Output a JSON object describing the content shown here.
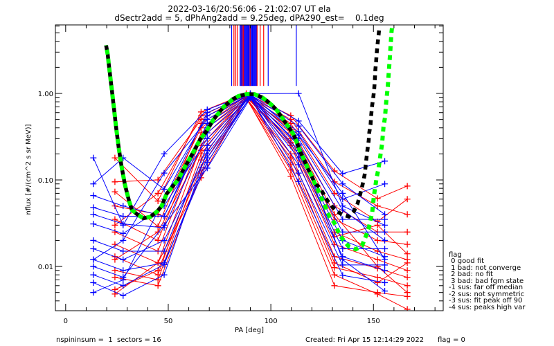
{
  "chart_data": {
    "type": "line",
    "title": "2022-03-16/20:56:06 - 21:02:07 UT ela",
    "subtitle": "dSectr2add = 5, dPhAng2add = 9.25deg, dPA290_est=    0.1deg",
    "xlabel": "PA [deg]",
    "ylabel": "nflux [#/(cm^2 s sr MeV)]",
    "xlim": [
      -5,
      184
    ],
    "ylim": [
      0.00308,
      6.19
    ],
    "yscale": "log",
    "grid": false,
    "legend_placement": "outside-bottom-right",
    "xticks": [
      0,
      50,
      100,
      150
    ],
    "xtick_labels": [
      "0",
      "50",
      "100",
      "150"
    ],
    "x_minor_step": 10,
    "yticks": [
      0.01,
      0.1,
      1.0
    ],
    "ytick_labels": [
      "0.01",
      "0.10",
      "1.00"
    ],
    "series": [
      {
        "name": "red sectors",
        "color": "#ff0000",
        "marker": "+",
        "x": [
          24,
          45,
          66,
          88,
          109.7,
          131,
          152,
          166.5
        ],
        "traces": [
          [
            0.18,
            0.057,
            0.61,
            1.0,
            0.555,
            0.127,
            0.061,
            0.085
          ],
          [
            0.095,
            0.1,
            0.5,
            0.97,
            0.5,
            0.095,
            0.05,
            0.04
          ],
          [
            0.073,
            0.029,
            0.45,
            0.95,
            0.45,
            0.07,
            0.033,
            0.06
          ],
          [
            0.05,
            0.04,
            0.4,
            0.93,
            0.4,
            0.05,
            0.025,
            0.025
          ],
          [
            0.035,
            0.02,
            0.35,
            0.91,
            0.35,
            0.035,
            0.02,
            0.018
          ],
          [
            0.025,
            0.015,
            0.3,
            0.9,
            0.3,
            0.025,
            0.015,
            0.012
          ],
          [
            0.018,
            0.011,
            0.25,
            0.92,
            0.25,
            0.018,
            0.012,
            0.009
          ],
          [
            0.013,
            0.008,
            0.2,
            0.88,
            0.2,
            0.013,
            0.0095,
            0.0075
          ],
          [
            0.009,
            0.007,
            0.17,
            0.9,
            0.15,
            0.0097,
            0.0075,
            0.006
          ],
          [
            0.0054,
            0.009,
            0.14,
            0.89,
            0.11,
            0.006,
            0.005,
            0.0045
          ],
          [
            0.0048,
            0.011,
            0.106,
            0.87,
            0.13,
            0.008,
            0.0048,
            0.0032
          ],
          [
            0.0075,
            0.006,
            0.12,
            0.86,
            0.18,
            0.011,
            0.0065,
            0.011
          ],
          [
            0.03,
            0.07,
            0.55,
            0.96,
            0.38,
            0.04,
            0.01,
            0.005
          ],
          [
            0.012,
            0.025,
            0.22,
            0.94,
            0.27,
            0.022,
            0.03,
            0.014
          ]
        ]
      },
      {
        "name": "blue sectors",
        "color": "#0000ff",
        "marker": "+",
        "x": [
          13.5,
          28,
          48,
          69,
          90,
          113.5,
          135,
          155.5
        ],
        "traces": [
          [
            0.18,
            0.03,
            0.2,
            0.65,
            1.0,
            0.48,
            0.118,
            0.165
          ],
          [
            0.09,
            0.18,
            0.078,
            0.55,
            0.97,
            0.42,
            0.09,
            0.04
          ],
          [
            0.066,
            0.05,
            0.038,
            0.45,
            0.95,
            0.36,
            0.06,
            0.09
          ],
          [
            0.048,
            0.038,
            0.038,
            0.4,
            0.93,
            0.3,
            0.045,
            0.02
          ],
          [
            0.04,
            0.031,
            0.028,
            0.35,
            0.92,
            0.26,
            0.035,
            0.035
          ],
          [
            0.031,
            0.024,
            0.05,
            0.3,
            0.9,
            0.22,
            0.025,
            0.025
          ],
          [
            0.02,
            0.015,
            0.015,
            0.25,
            0.96,
            0.2,
            0.02,
            0.013
          ],
          [
            0.016,
            0.012,
            0.02,
            0.2,
            0.89,
            0.18,
            0.016,
            0.016
          ],
          [
            0.012,
            0.009,
            0.011,
            0.16,
            0.91,
            0.15,
            0.013,
            0.009
          ],
          [
            0.01,
            0.0075,
            0.03,
            0.137,
            0.88,
            0.12,
            0.0104,
            0.0104
          ],
          [
            0.008,
            0.006,
            0.0105,
            0.18,
            0.9,
            0.096,
            0.0079,
            0.0065
          ],
          [
            0.0065,
            0.0046,
            0.008,
            0.22,
            0.94,
            0.25,
            0.012,
            0.0052
          ],
          [
            0.005,
            0.007,
            0.06,
            0.6,
            0.99,
            1.0,
            0.05,
            0.03
          ],
          [
            0.012,
            0.02,
            0.12,
            0.5,
            0.98,
            0.33,
            0.07,
            0.012
          ]
        ]
      }
    ],
    "peak_markers": {
      "from_flux": 1.22,
      "blue": [
        80.9,
        85.0,
        85.4,
        85.8,
        86.2,
        86.6,
        87.0,
        87.4,
        87.8,
        88.2,
        88.6,
        89.0,
        89.4,
        89.8,
        90.2,
        90.6,
        91.0,
        91.4,
        91.8,
        92.2,
        92.6,
        93.0,
        98.7,
        112.4
      ],
      "red": [
        82.0,
        82.8,
        83.6,
        86.0,
        86.7,
        89.9,
        93.3,
        94.8,
        96.5
      ]
    },
    "fits": [
      {
        "name": "fit (black, dashed)",
        "color": "#000000",
        "style": "dashed",
        "points": [
          [
            19.7,
            3.6
          ],
          [
            20.5,
            2.8
          ],
          [
            21,
            2.2
          ],
          [
            21.5,
            1.75
          ],
          [
            22,
            1.38
          ],
          [
            22.5,
            1.1
          ],
          [
            23,
            0.86
          ],
          [
            23.5,
            0.69
          ],
          [
            24,
            0.54
          ],
          [
            24.5,
            0.42
          ],
          [
            25.8,
            0.24
          ],
          [
            27.2,
            0.145
          ],
          [
            28.9,
            0.088
          ],
          [
            30.9,
            0.057
          ],
          [
            32.3,
            0.045
          ],
          [
            34.9,
            0.04
          ],
          [
            37.9,
            0.036
          ],
          [
            41.3,
            0.0375
          ],
          [
            44.7,
            0.0435
          ],
          [
            46.8,
            0.05
          ],
          [
            49.2,
            0.069
          ],
          [
            51.9,
            0.083
          ],
          [
            54.8,
            0.1
          ],
          [
            57,
            0.127
          ],
          [
            59.3,
            0.158
          ],
          [
            62.7,
            0.22
          ],
          [
            65.4,
            0.29
          ],
          [
            68.4,
            0.36
          ],
          [
            72.1,
            0.5
          ],
          [
            76.8,
            0.69
          ],
          [
            81.5,
            0.86
          ],
          [
            84.2,
            0.93
          ],
          [
            88,
            0.98
          ],
          [
            92,
            0.98
          ],
          [
            95.7,
            0.9
          ],
          [
            98.1,
            0.82
          ],
          [
            100.8,
            0.72
          ],
          [
            103.1,
            0.63
          ],
          [
            105.1,
            0.54
          ],
          [
            107.1,
            0.46
          ],
          [
            108.9,
            0.4
          ],
          [
            110.9,
            0.34
          ],
          [
            112.3,
            0.285
          ],
          [
            114,
            0.22
          ],
          [
            115.4,
            0.187
          ],
          [
            117,
            0.155
          ],
          [
            118.4,
            0.13
          ],
          [
            120,
            0.11
          ],
          [
            121.4,
            0.091
          ],
          [
            123.8,
            0.082
          ],
          [
            127.5,
            0.058
          ],
          [
            129.6,
            0.05
          ],
          [
            131.9,
            0.044
          ],
          [
            134.6,
            0.04
          ],
          [
            138,
            0.0377
          ],
          [
            140.4,
            0.043
          ],
          [
            142.1,
            0.052
          ],
          [
            143.1,
            0.062
          ],
          [
            144.1,
            0.077
          ],
          [
            145.1,
            0.096
          ],
          [
            145.8,
            0.118
          ],
          [
            146.6,
            0.179
          ],
          [
            147.1,
            0.225
          ],
          [
            147.7,
            0.284
          ],
          [
            148,
            0.356
          ],
          [
            148.6,
            0.436
          ],
          [
            148.9,
            0.557
          ],
          [
            149.3,
            0.705
          ],
          [
            149.9,
            0.895
          ],
          [
            150.4,
            1.13
          ],
          [
            150.7,
            1.44
          ],
          [
            150.9,
            1.83
          ],
          [
            151.3,
            2.32
          ],
          [
            151.6,
            2.93
          ],
          [
            152,
            3.7
          ],
          [
            152.5,
            4.72
          ],
          [
            152.9,
            5.94
          ]
        ]
      },
      {
        "name": "fit (green, dotted)",
        "color": "#00ff00",
        "style": "dotted",
        "points": [
          [
            19.7,
            3.6
          ],
          [
            20.5,
            2.8
          ],
          [
            21,
            2.2
          ],
          [
            21.5,
            1.75
          ],
          [
            22,
            1.38
          ],
          [
            22.5,
            1.1
          ],
          [
            23,
            0.86
          ],
          [
            23.5,
            0.69
          ],
          [
            24,
            0.54
          ],
          [
            24.5,
            0.42
          ],
          [
            25.8,
            0.24
          ],
          [
            27.2,
            0.145
          ],
          [
            28.9,
            0.088
          ],
          [
            30.9,
            0.057
          ],
          [
            32.3,
            0.045
          ],
          [
            34.9,
            0.04
          ],
          [
            37.9,
            0.036
          ],
          [
            41.3,
            0.0375
          ],
          [
            44.7,
            0.0435
          ],
          [
            46.8,
            0.05
          ],
          [
            49.2,
            0.069
          ],
          [
            51.9,
            0.083
          ],
          [
            54.8,
            0.1
          ],
          [
            57,
            0.127
          ],
          [
            59.3,
            0.158
          ],
          [
            62.7,
            0.22
          ],
          [
            65.4,
            0.29
          ],
          [
            68.4,
            0.36
          ],
          [
            72.1,
            0.5
          ],
          [
            76.8,
            0.69
          ],
          [
            81.5,
            0.86
          ],
          [
            84.2,
            0.93
          ],
          [
            88,
            0.98
          ],
          [
            92,
            0.98
          ],
          [
            95.7,
            0.9
          ],
          [
            98.1,
            0.82
          ],
          [
            100.8,
            0.72
          ],
          [
            103.1,
            0.63
          ],
          [
            105.1,
            0.54
          ],
          [
            107.1,
            0.46
          ],
          [
            108.9,
            0.4
          ],
          [
            110.9,
            0.34
          ],
          [
            112.3,
            0.285
          ],
          [
            114,
            0.22
          ],
          [
            115.4,
            0.187
          ],
          [
            117,
            0.155
          ],
          [
            118.4,
            0.13
          ],
          [
            120,
            0.11
          ],
          [
            121.4,
            0.091
          ],
          [
            122.8,
            0.078
          ],
          [
            125.8,
            0.054
          ],
          [
            128.6,
            0.0375
          ],
          [
            130.9,
            0.032
          ],
          [
            133.6,
            0.023
          ],
          [
            135.6,
            0.0198
          ],
          [
            137.9,
            0.0171
          ],
          [
            141.4,
            0.0158
          ],
          [
            144.4,
            0.0173
          ],
          [
            146.5,
            0.023
          ],
          [
            147.7,
            0.0276
          ],
          [
            148.5,
            0.034
          ],
          [
            149.4,
            0.042
          ],
          [
            150.2,
            0.065
          ],
          [
            151.5,
            0.104
          ],
          [
            152.5,
            0.137
          ],
          [
            153.5,
            0.2
          ],
          [
            154.2,
            0.26
          ],
          [
            154.9,
            0.41
          ],
          [
            155.6,
            0.525
          ],
          [
            156.3,
            0.83
          ],
          [
            157,
            1.2
          ],
          [
            157.6,
            1.94
          ],
          [
            158.2,
            3.1
          ],
          [
            158.8,
            5.07
          ],
          [
            159.2,
            6.2
          ]
        ]
      }
    ]
  },
  "legend": {
    "title": "flag",
    "items": [
      " 0 good fit",
      " 1 bad: not converge",
      " 2 bad: no fit",
      " 3 bad: bad fgm state",
      "-1 sus: far off median",
      "-2 sus: not symmetric",
      "-3 sus: fit peak off 90",
      "-4 sus: peaks high var"
    ]
  },
  "footer": {
    "left": "nspininsum =  1  sectors = 16",
    "created": "Created: Fri Apr 15 12:14:29 2022",
    "flag": "flag = 0"
  }
}
